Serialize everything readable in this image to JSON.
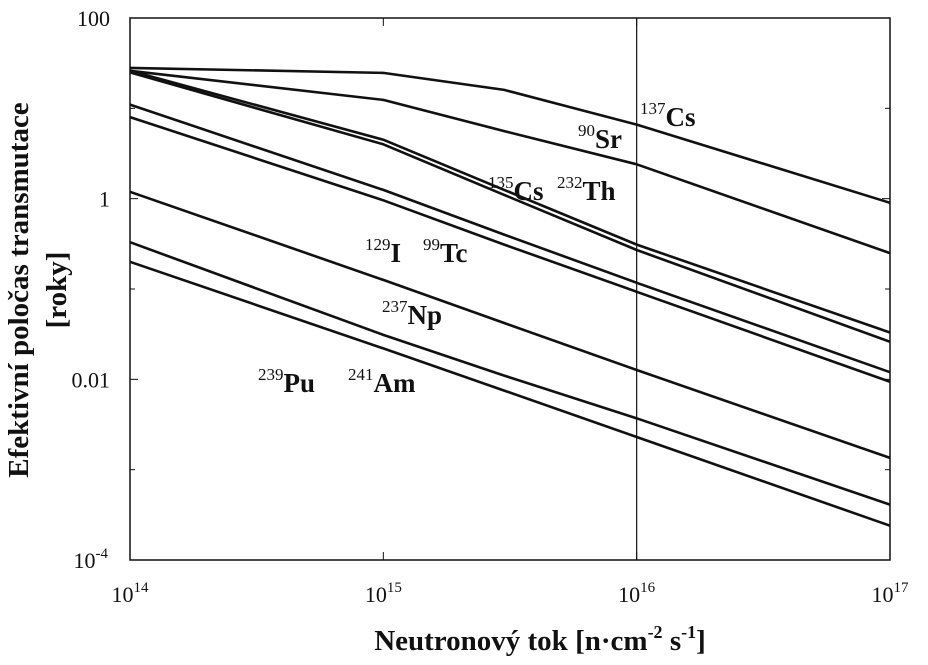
{
  "chart_data": {
    "type": "line",
    "xlabel": [
      "Neutronový tok [n·cm",
      "-2",
      " s",
      "-1",
      "]"
    ],
    "ylabel": [
      "Efektivní poločas transmutace",
      "[roky]"
    ],
    "x_log": true,
    "y_log": true,
    "xlim": [
      100000000000000.0,
      1e+17
    ],
    "ylim": [
      0.0001,
      100
    ],
    "xticks": [
      {
        "value": 100000000000000.0,
        "label": "10",
        "exponent": "14"
      },
      {
        "value": 1000000000000000.0,
        "label": "10",
        "exponent": "15"
      },
      {
        "value": 1e+16,
        "label": "10",
        "exponent": "16"
      },
      {
        "value": 1e+17,
        "label": "10",
        "exponent": "17"
      }
    ],
    "yticks": [
      {
        "value": 0.0001,
        "label": "10",
        "exponent": "-4"
      },
      0.01,
      1,
      100
    ],
    "y_minor_ticks": [
      0.001,
      0.1,
      10
    ],
    "vline": 1e+16,
    "x": [
      100000000000000.0,
      1000000000000000.0,
      3000000000000000.0,
      1e+16,
      1e+17
    ],
    "series": [
      {
        "color": "#111",
        "values": [
          28,
          24.7,
          16,
          6.6,
          0.9
        ]
      },
      {
        "color": "#111",
        "values": [
          26,
          12.4,
          5.6,
          2.4,
          0.25
        ]
      },
      {
        "color": "#111",
        "values": [
          26,
          4.5,
          1.25,
          0.31,
          0.033
        ]
      },
      {
        "color": "#111",
        "values": [
          25,
          4.0,
          1.1,
          0.27,
          0.026
        ]
      },
      {
        "color": "#111",
        "values": [
          11,
          1.25,
          0.4,
          0.117,
          0.012
        ]
      },
      {
        "color": "#111",
        "values": [
          8,
          0.96,
          0.31,
          0.093,
          0.0094
        ]
      },
      {
        "color": "#111",
        "values": [
          1.19,
          0.126,
          0.042,
          0.0127,
          0.00135
        ]
      },
      {
        "color": "#111",
        "values": [
          0.33,
          0.031,
          0.011,
          0.0037,
          0.00041
        ]
      },
      {
        "color": "#111",
        "values": [
          0.2,
          0.022,
          0.0075,
          0.0023,
          0.00024
        ]
      }
    ],
    "annotations": [
      {
        "mass": "137",
        "symbol": "Cs"
      },
      {
        "mass": "90",
        "symbol": "Sr"
      },
      {
        "mass": "135",
        "symbol": "Cs"
      },
      {
        "mass": "232",
        "symbol": "Th"
      },
      {
        "mass": "129",
        "symbol": "I"
      },
      {
        "mass": "99",
        "symbol": "Tc"
      },
      {
        "mass": "237",
        "symbol": "Np"
      },
      {
        "mass": "239",
        "symbol": "Pu"
      },
      {
        "mass": "241",
        "symbol": "Am"
      }
    ]
  }
}
